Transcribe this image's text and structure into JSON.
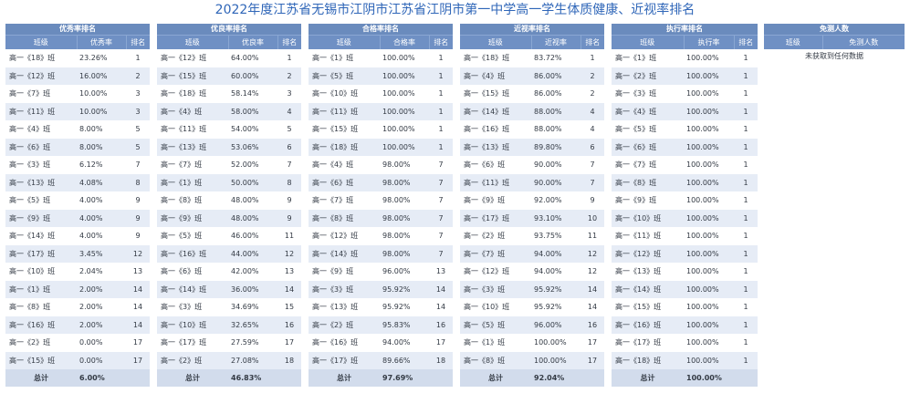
{
  "title": "2022年度江苏省无锡市江阴市江苏省江阴市第一中学高一学生体质健康、近视率排名",
  "panels": [
    {
      "header": "优秀率排名",
      "columns": [
        "班级",
        "优秀率",
        "排名"
      ],
      "rows": [
        [
          "高一《18》班",
          "23.26%",
          "1"
        ],
        [
          "高一《12》班",
          "16.00%",
          "2"
        ],
        [
          "高一《7》班",
          "10.00%",
          "3"
        ],
        [
          "高一《11》班",
          "10.00%",
          "3"
        ],
        [
          "高一《4》班",
          "8.00%",
          "5"
        ],
        [
          "高一《6》班",
          "8.00%",
          "5"
        ],
        [
          "高一《3》班",
          "6.12%",
          "7"
        ],
        [
          "高一《13》班",
          "4.08%",
          "8"
        ],
        [
          "高一《5》班",
          "4.00%",
          "9"
        ],
        [
          "高一《9》班",
          "4.00%",
          "9"
        ],
        [
          "高一《14》班",
          "4.00%",
          "9"
        ],
        [
          "高一《17》班",
          "3.45%",
          "12"
        ],
        [
          "高一《10》班",
          "2.04%",
          "13"
        ],
        [
          "高一《1》班",
          "2.00%",
          "14"
        ],
        [
          "高一《8》班",
          "2.00%",
          "14"
        ],
        [
          "高一《16》班",
          "2.00%",
          "14"
        ],
        [
          "高一《2》班",
          "0.00%",
          "17"
        ],
        [
          "高一《15》班",
          "0.00%",
          "17"
        ]
      ],
      "total_label": "总计",
      "total_value": "6.00%"
    },
    {
      "header": "优良率排名",
      "columns": [
        "班级",
        "优良率",
        "排名"
      ],
      "rows": [
        [
          "高一《12》班",
          "64.00%",
          "1"
        ],
        [
          "高一《15》班",
          "60.00%",
          "2"
        ],
        [
          "高一《18》班",
          "58.14%",
          "3"
        ],
        [
          "高一《4》班",
          "58.00%",
          "4"
        ],
        [
          "高一《11》班",
          "54.00%",
          "5"
        ],
        [
          "高一《13》班",
          "53.06%",
          "6"
        ],
        [
          "高一《7》班",
          "52.00%",
          "7"
        ],
        [
          "高一《1》班",
          "50.00%",
          "8"
        ],
        [
          "高一《8》班",
          "48.00%",
          "9"
        ],
        [
          "高一《9》班",
          "48.00%",
          "9"
        ],
        [
          "高一《5》班",
          "46.00%",
          "11"
        ],
        [
          "高一《16》班",
          "44.00%",
          "12"
        ],
        [
          "高一《6》班",
          "42.00%",
          "13"
        ],
        [
          "高一《14》班",
          "36.00%",
          "14"
        ],
        [
          "高一《3》班",
          "34.69%",
          "15"
        ],
        [
          "高一《10》班",
          "32.65%",
          "16"
        ],
        [
          "高一《17》班",
          "27.59%",
          "17"
        ],
        [
          "高一《2》班",
          "27.08%",
          "18"
        ]
      ],
      "total_label": "总计",
      "total_value": "46.83%"
    },
    {
      "header": "合格率排名",
      "columns": [
        "班级",
        "合格率",
        "排名"
      ],
      "rows": [
        [
          "高一《1》班",
          "100.00%",
          "1"
        ],
        [
          "高一《5》班",
          "100.00%",
          "1"
        ],
        [
          "高一《10》班",
          "100.00%",
          "1"
        ],
        [
          "高一《11》班",
          "100.00%",
          "1"
        ],
        [
          "高一《15》班",
          "100.00%",
          "1"
        ],
        [
          "高一《18》班",
          "100.00%",
          "1"
        ],
        [
          "高一《4》班",
          "98.00%",
          "7"
        ],
        [
          "高一《6》班",
          "98.00%",
          "7"
        ],
        [
          "高一《7》班",
          "98.00%",
          "7"
        ],
        [
          "高一《8》班",
          "98.00%",
          "7"
        ],
        [
          "高一《12》班",
          "98.00%",
          "7"
        ],
        [
          "高一《14》班",
          "98.00%",
          "7"
        ],
        [
          "高一《9》班",
          "96.00%",
          "13"
        ],
        [
          "高一《3》班",
          "95.92%",
          "14"
        ],
        [
          "高一《13》班",
          "95.92%",
          "14"
        ],
        [
          "高一《2》班",
          "95.83%",
          "16"
        ],
        [
          "高一《16》班",
          "94.00%",
          "17"
        ],
        [
          "高一《17》班",
          "89.66%",
          "18"
        ]
      ],
      "total_label": "总计",
      "total_value": "97.69%"
    },
    {
      "header": "近视率排名",
      "columns": [
        "班级",
        "近视率",
        "排名"
      ],
      "rows": [
        [
          "高一《18》班",
          "83.72%",
          "1"
        ],
        [
          "高一《4》班",
          "86.00%",
          "2"
        ],
        [
          "高一《15》班",
          "86.00%",
          "2"
        ],
        [
          "高一《14》班",
          "88.00%",
          "4"
        ],
        [
          "高一《16》班",
          "88.00%",
          "4"
        ],
        [
          "高一《13》班",
          "89.80%",
          "6"
        ],
        [
          "高一《6》班",
          "90.00%",
          "7"
        ],
        [
          "高一《11》班",
          "90.00%",
          "7"
        ],
        [
          "高一《9》班",
          "92.00%",
          "9"
        ],
        [
          "高一《17》班",
          "93.10%",
          "10"
        ],
        [
          "高一《2》班",
          "93.75%",
          "11"
        ],
        [
          "高一《7》班",
          "94.00%",
          "12"
        ],
        [
          "高一《12》班",
          "94.00%",
          "12"
        ],
        [
          "高一《3》班",
          "95.92%",
          "14"
        ],
        [
          "高一《10》班",
          "95.92%",
          "14"
        ],
        [
          "高一《5》班",
          "96.00%",
          "16"
        ],
        [
          "高一《1》班",
          "100.00%",
          "17"
        ],
        [
          "高一《8》班",
          "100.00%",
          "17"
        ]
      ],
      "total_label": "总计",
      "total_value": "92.04%"
    },
    {
      "header": "执行率排名",
      "columns": [
        "班级",
        "执行率",
        "排名"
      ],
      "rows": [
        [
          "高一《1》班",
          "100.00%",
          "1"
        ],
        [
          "高一《2》班",
          "100.00%",
          "1"
        ],
        [
          "高一《3》班",
          "100.00%",
          "1"
        ],
        [
          "高一《4》班",
          "100.00%",
          "1"
        ],
        [
          "高一《5》班",
          "100.00%",
          "1"
        ],
        [
          "高一《6》班",
          "100.00%",
          "1"
        ],
        [
          "高一《7》班",
          "100.00%",
          "1"
        ],
        [
          "高一《8》班",
          "100.00%",
          "1"
        ],
        [
          "高一《9》班",
          "100.00%",
          "1"
        ],
        [
          "高一《10》班",
          "100.00%",
          "1"
        ],
        [
          "高一《11》班",
          "100.00%",
          "1"
        ],
        [
          "高一《12》班",
          "100.00%",
          "1"
        ],
        [
          "高一《13》班",
          "100.00%",
          "1"
        ],
        [
          "高一《14》班",
          "100.00%",
          "1"
        ],
        [
          "高一《15》班",
          "100.00%",
          "1"
        ],
        [
          "高一《16》班",
          "100.00%",
          "1"
        ],
        [
          "高一《17》班",
          "100.00%",
          "1"
        ],
        [
          "高一《18》班",
          "100.00%",
          "1"
        ]
      ],
      "total_label": "总计",
      "total_value": "100.00%"
    }
  ],
  "exempt": {
    "header": "免测人数",
    "columns": [
      "班级",
      "免测人数"
    ],
    "empty_text": "未获取到任何数据"
  }
}
